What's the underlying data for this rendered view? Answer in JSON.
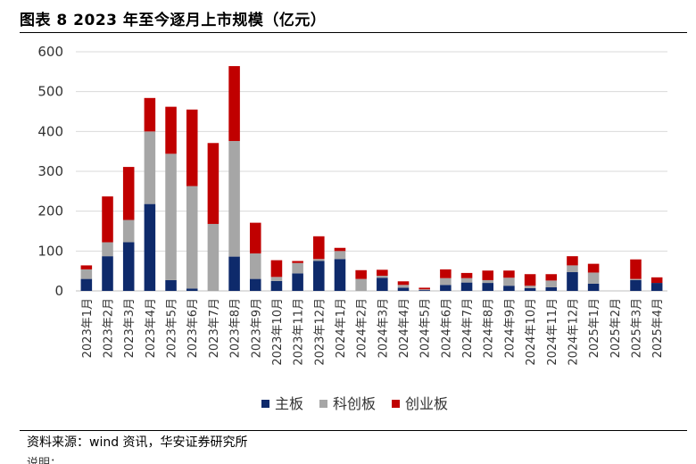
{
  "header": {
    "title": "图表 8 2023 年至今逐月上市规模（亿元）"
  },
  "footer": {
    "source": "资料来源：wind 资讯，华安证券研究所",
    "cut_text": "说明："
  },
  "chart_data": {
    "type": "bar",
    "stacked": true,
    "title": "图表 8 2023 年至今逐月上市规模（亿元）",
    "xlabel": "",
    "ylabel": "",
    "ylim": [
      0,
      600
    ],
    "yticks": [
      0,
      100,
      200,
      300,
      400,
      500,
      600
    ],
    "grid": true,
    "legend_position": "bottom",
    "categories": [
      "2023年1月",
      "2023年2月",
      "2023年3月",
      "2023年4月",
      "2023年5月",
      "2023年6月",
      "2023年7月",
      "2023年8月",
      "2023年9月",
      "2023年10月",
      "2023年11月",
      "2023年12月",
      "2024年1月",
      "2024年2月",
      "2024年3月",
      "2024年4月",
      "2024年5月",
      "2024年6月",
      "2024年7月",
      "2024年8月",
      "2024年9月",
      "2024年10月",
      "2024年11月",
      "2024年12月",
      "2025年1月",
      "2025年2月",
      "2025年3月",
      "2025年4月"
    ],
    "series": [
      {
        "name": "主板",
        "color": "#0e2a6b",
        "values": [
          30,
          87,
          122,
          218,
          27,
          6,
          0,
          86,
          30,
          25,
          44,
          75,
          80,
          0,
          33,
          8,
          2,
          15,
          21,
          20,
          13,
          7,
          9,
          47,
          18,
          0,
          27,
          20
        ]
      },
      {
        "name": "科创板",
        "color": "#a6a6a6",
        "values": [
          24,
          35,
          56,
          182,
          317,
          257,
          168,
          290,
          64,
          10,
          26,
          5,
          20,
          30,
          5,
          7,
          2,
          17,
          11,
          7,
          20,
          6,
          17,
          17,
          28,
          0,
          3,
          0
        ]
      },
      {
        "name": "创业板",
        "color": "#c00000",
        "values": [
          10,
          115,
          133,
          84,
          118,
          192,
          203,
          188,
          77,
          42,
          5,
          57,
          8,
          22,
          15,
          9,
          4,
          22,
          13,
          24,
          18,
          29,
          16,
          23,
          22,
          0,
          49,
          14
        ]
      }
    ]
  }
}
